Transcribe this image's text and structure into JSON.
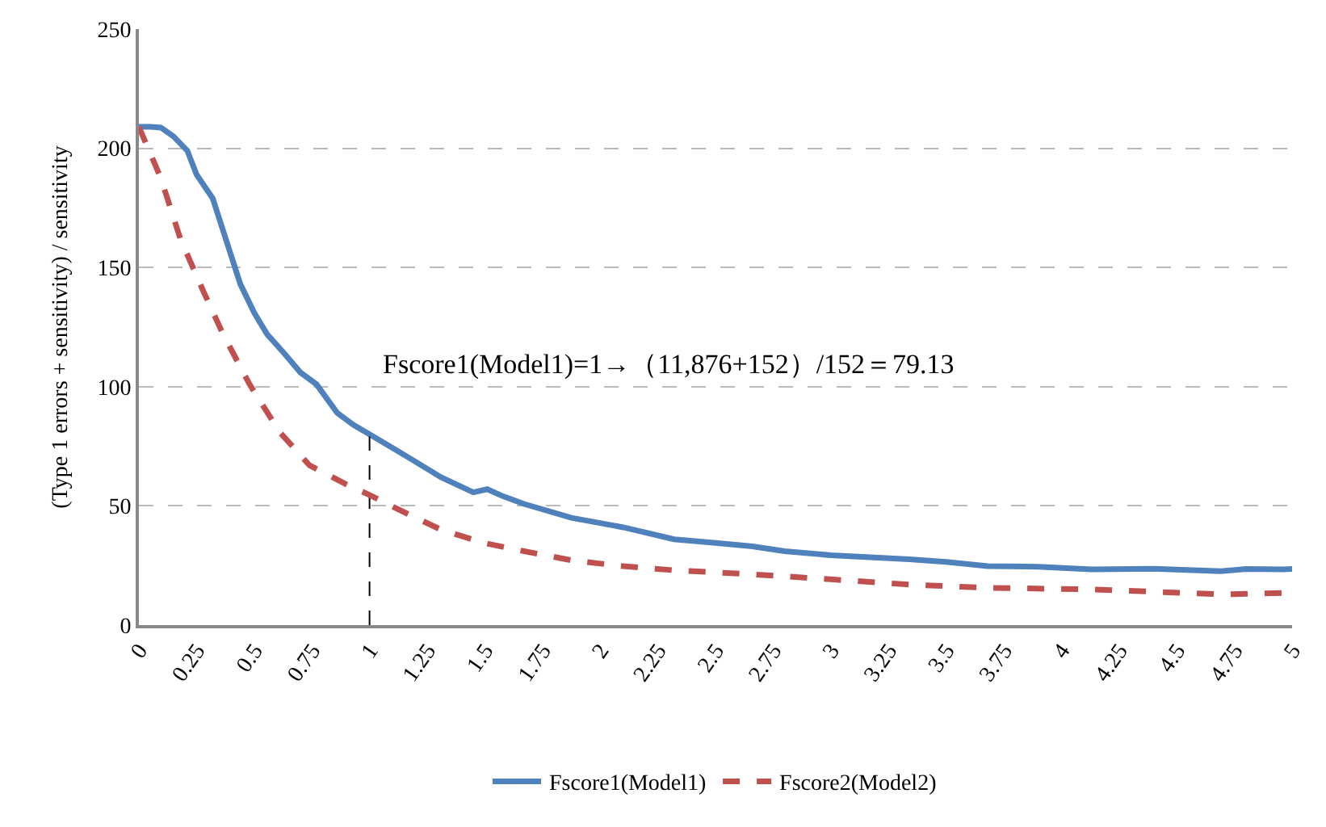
{
  "chart_data": {
    "type": "line",
    "ylabel": "(Type 1 errors + sensitivity) / sensitivity",
    "xlim": [
      0,
      5
    ],
    "xticks": [
      0,
      0.25,
      0.5,
      0.75,
      1,
      1.25,
      1.5,
      1.75,
      2,
      2.25,
      2.5,
      2.75,
      3,
      3.25,
      3.5,
      3.75,
      4,
      4.25,
      4.5,
      4.75,
      5
    ],
    "ylim": [
      0,
      250
    ],
    "yticks": [
      0,
      50,
      100,
      150,
      200,
      250
    ],
    "grid": "y",
    "legend": "bottom",
    "marker": "none",
    "series": [
      {
        "name": "Fscore1(Model1)",
        "color": "#4f81bd",
        "line_style": "solid",
        "x": [
          0,
          0.05,
          0.095,
          0.15,
          0.21,
          0.25,
          0.32,
          0.38,
          0.44,
          0.5,
          0.556,
          0.63,
          0.7,
          0.77,
          0.86,
          0.93,
          1,
          1.13,
          1.31,
          1.45,
          1.51,
          1.58,
          1.67,
          1.875,
          2.1,
          2.32,
          2.5,
          2.66,
          2.8,
          3,
          3.34,
          3.5,
          3.68,
          3.9,
          4.13,
          4.4,
          4.69,
          4.8,
          4.96,
          5
        ],
        "values": [
          209,
          209,
          208.7,
          205,
          199,
          189,
          179,
          161,
          143,
          131,
          122,
          114,
          106,
          101,
          89,
          84,
          80,
          72.6,
          62,
          55.7,
          57,
          54,
          50.8,
          45,
          41,
          36,
          34.5,
          33,
          31,
          29.3,
          27.6,
          26.5,
          24.7,
          24.5,
          23.4,
          23.6,
          22.6,
          23.5,
          23.4,
          23.5
        ]
      },
      {
        "type": "line",
        "color": "#000000",
        "line_style": "dashed",
        "x": [
          1,
          1
        ],
        "values": [
          0,
          79.13
        ]
      },
      {
        "name": "Fscore2(Model2)",
        "color": "#c0504d",
        "line_style": "dashed",
        "x": [
          0,
          0.095,
          0.18,
          0.275,
          0.365,
          0.48,
          0.61,
          0.74,
          0.9,
          1,
          1.13,
          1.31,
          1.49,
          1.67,
          1.875,
          2.1,
          2.32,
          2.66,
          3,
          3.34,
          3.68,
          4.13,
          4.69,
          4.96,
          5
        ],
        "values": [
          209,
          187.5,
          162,
          141,
          122,
          101,
          81,
          67,
          59,
          54.6,
          48.3,
          40,
          34.6,
          31,
          27.2,
          24.7,
          23,
          21.3,
          19.2,
          17,
          15.6,
          15,
          12.9,
          13.5,
          13.5
        ]
      }
    ],
    "annotations": [
      {
        "text": "Fscore1(Model1)=1→（11,876+152）/152＝79.13",
        "x": 1,
        "y": 79.13
      }
    ]
  }
}
